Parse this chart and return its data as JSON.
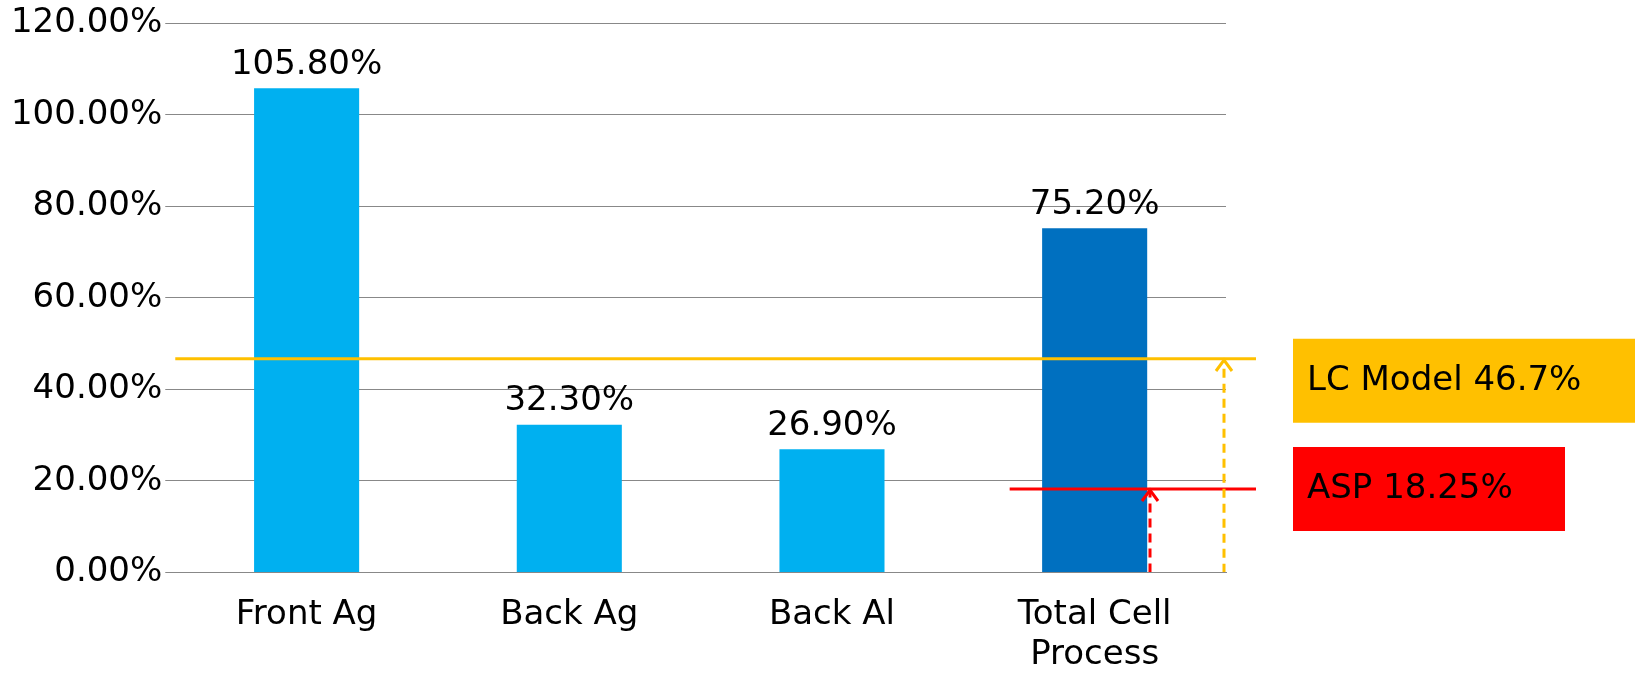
{
  "chart_data": {
    "type": "bar",
    "categories": [
      "Front Ag",
      "Back Ag",
      "Back Al",
      "Total Cell Process"
    ],
    "values": [
      105.8,
      32.3,
      26.9,
      75.2
    ],
    "colors": [
      "#00b0f0",
      "#00b0f0",
      "#00b0f0",
      "#0070c0"
    ],
    "value_labels": [
      "105.80%",
      "32.30%",
      "26.90%",
      "75.20%"
    ],
    "ylim": [
      0,
      120
    ],
    "yticks": [
      {
        "value": 0,
        "label": "0.00%"
      },
      {
        "value": 20,
        "label": "20.00%"
      },
      {
        "value": 40,
        "label": "40.00%"
      },
      {
        "value": 60,
        "label": "60.00%"
      },
      {
        "value": 80,
        "label": "80.00%"
      },
      {
        "value": 100,
        "label": "100.00%"
      },
      {
        "value": 120,
        "label": "120.00%"
      }
    ],
    "grid": "y",
    "legend": false,
    "ref_lines": [
      {
        "axis": "y",
        "value": 46.7,
        "label": "LC Model 46.7%",
        "color": "#ffc000"
      },
      {
        "axis": "y",
        "value": 18.25,
        "label": "ASP 18.25%",
        "color": "#ff0000"
      }
    ]
  }
}
